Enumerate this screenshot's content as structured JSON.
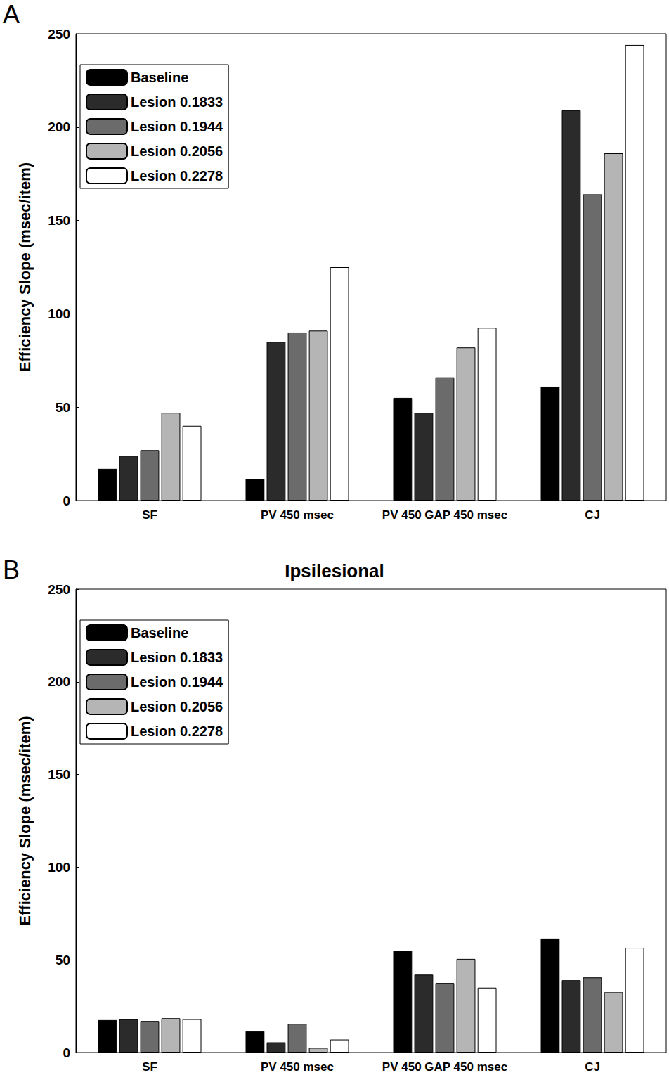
{
  "chart_data": [
    {
      "type": "bar",
      "annotations": [
        "A"
      ],
      "y_label": "Efficiency Slope (msec/item)",
      "categories": [
        "SF",
        "PV 450 msec",
        "PV 450 GAP 450 msec",
        "CJ"
      ],
      "series": [
        {
          "name": "Baseline",
          "color": "#000000",
          "values": [
            17,
            11.5,
            55,
            61
          ]
        },
        {
          "name": "Lesion 0.1833",
          "color": "#2b2b2b",
          "values": [
            24,
            85,
            47,
            209
          ]
        },
        {
          "name": "Lesion 0.1944",
          "color": "#6b6b6b",
          "values": [
            27,
            90,
            66,
            164
          ]
        },
        {
          "name": "Lesion 0.2056",
          "color": "#b5b5b5",
          "values": [
            47,
            91,
            82,
            186
          ]
        },
        {
          "name": "Lesion 0.2278",
          "color": "#ffffff",
          "values": [
            40,
            125,
            92.5,
            244
          ]
        }
      ],
      "ylim": [
        0,
        250
      ],
      "yticks": [
        0,
        50,
        100,
        150,
        200,
        250
      ],
      "legend": "upper left",
      "grid": false
    },
    {
      "type": "bar",
      "annotations": [
        "B"
      ],
      "title": "Ipsilesional",
      "y_label": "Efficiency Slope (msec/item)",
      "categories": [
        "SF",
        "PV 450 msec",
        "PV 450 GAP 450 msec",
        "CJ"
      ],
      "series": [
        {
          "name": "Baseline",
          "color": "#000000",
          "values": [
            17.5,
            11.5,
            55,
            61.5
          ]
        },
        {
          "name": "Lesion 0.1833",
          "color": "#2b2b2b",
          "values": [
            18,
            5.5,
            42,
            39
          ]
        },
        {
          "name": "Lesion 0.1944",
          "color": "#6b6b6b",
          "values": [
            17,
            15.5,
            37.5,
            40.5
          ]
        },
        {
          "name": "Lesion 0.2056",
          "color": "#b5b5b5",
          "values": [
            18.5,
            2.5,
            50.5,
            32.5
          ]
        },
        {
          "name": "Lesion 0.2278",
          "color": "#ffffff",
          "values": [
            18,
            7,
            35,
            56.5
          ]
        }
      ],
      "ylim": [
        0,
        250
      ],
      "yticks": [
        0,
        50,
        100,
        150,
        200,
        250
      ],
      "legend": "upper left",
      "grid": false
    }
  ]
}
